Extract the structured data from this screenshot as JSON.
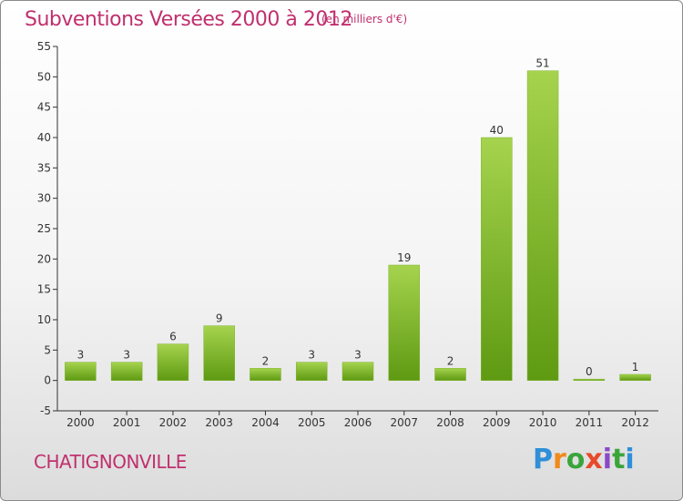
{
  "header": {
    "title": "Subventions Versées 2000 à 2012",
    "subtitle": "(en milliers d'€)"
  },
  "footer": {
    "commune": "CHATIGNONVILLE",
    "logo": "Proxiti"
  },
  "colors": {
    "title": "#c0306e",
    "bar_light": "#a6d34e",
    "bar_dark": "#5e9a12"
  },
  "chart_data": {
    "type": "bar",
    "categories": [
      "2000",
      "2001",
      "2002",
      "2003",
      "2004",
      "2005",
      "2006",
      "2007",
      "2008",
      "2009",
      "2010",
      "2011",
      "2012"
    ],
    "values": [
      3,
      3,
      6,
      9,
      2,
      3,
      3,
      19,
      2,
      40,
      51,
      0,
      1
    ],
    "ylim": [
      -5,
      55
    ],
    "yticks": [
      -5,
      0,
      5,
      10,
      15,
      20,
      25,
      30,
      35,
      40,
      45,
      50,
      55
    ],
    "grid": false,
    "legend": "none"
  }
}
